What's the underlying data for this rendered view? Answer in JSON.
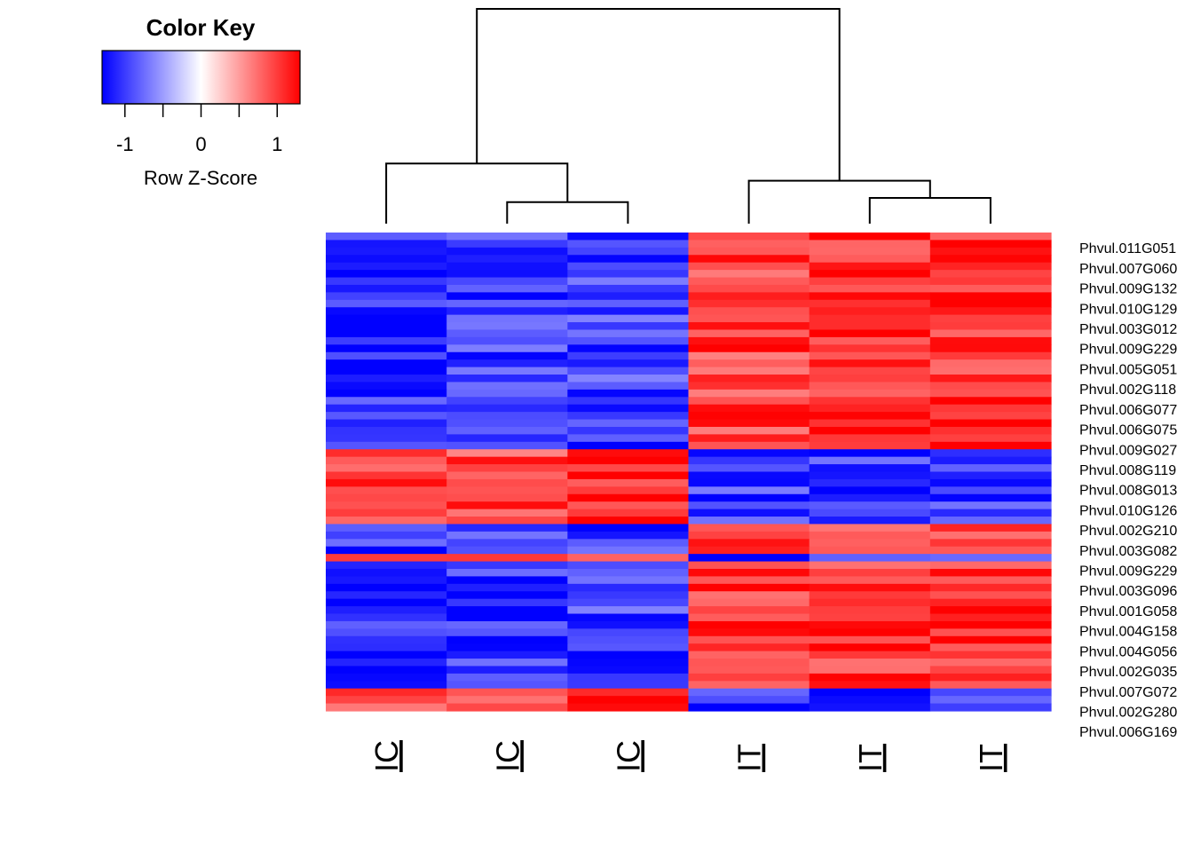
{
  "chart_data": {
    "type": "heatmap",
    "color_key": {
      "title": "Color Key",
      "xlabel": "Row Z-Score",
      "range": [
        -1.3,
        1.3
      ],
      "ticks": [
        "-1",
        "0",
        "1"
      ],
      "tick_values": [
        -1,
        0,
        1
      ],
      "minor_tick_values": [
        -1,
        -0.5,
        0,
        0.5,
        1
      ],
      "low_color": "#0000ff",
      "mid_color": "#ffffff",
      "high_color": "#ff0000"
    },
    "columns": [
      "IC",
      "IC",
      "IC",
      "IT",
      "IT",
      "IT"
    ],
    "row_labels": [
      "Phvul.011G051",
      "Phvul.007G060",
      "Phvul.009G132",
      "Phvul.010G129",
      "Phvul.003G012",
      "Phvul.009G229",
      "Phvul.005G051",
      "Phvul.002G118",
      "Phvul.006G077",
      "Phvul.006G075",
      "Phvul.009G027",
      "Phvul.008G119",
      "Phvul.008G013",
      "Phvul.010G126",
      "Phvul.002G210",
      "Phvul.003G082",
      "Phvul.009G229",
      "Phvul.003G096",
      "Phvul.001G058",
      "Phvul.004G158",
      "Phvul.004G056",
      "Phvul.002G035",
      "Phvul.007G072",
      "Phvul.002G280",
      "Phvul.006G169"
    ],
    "row_clusters": [
      {
        "rows": 29,
        "values": [
          -1.1,
          -1.0,
          -0.95,
          1.0,
          1.05,
          1.05
        ]
      },
      {
        "rows": 10,
        "values": [
          1.0,
          0.9,
          1.15,
          -1.0,
          -1.05,
          -1.05
        ]
      },
      {
        "rows": 4,
        "values": [
          -1.0,
          -1.0,
          -1.0,
          1.1,
          1.0,
          1.0
        ]
      },
      {
        "rows": 1,
        "values": [
          1.0,
          1.0,
          1.1,
          -1.2,
          -1.0,
          -0.9
        ]
      },
      {
        "rows": 17,
        "values": [
          -1.1,
          -1.0,
          -0.95,
          1.0,
          1.05,
          1.05
        ]
      },
      {
        "rows": 2,
        "values": [
          1.05,
          0.95,
          1.15,
          -1.0,
          -1.0,
          -0.9
        ]
      },
      {
        "rows": 1,
        "values": [
          1.0,
          1.0,
          1.1,
          -1.2,
          -1.1,
          -0.8
        ]
      }
    ],
    "column_dendrogram": [
      {
        "left": 2,
        "right": 3,
        "height": 0.1
      },
      {
        "left": 1,
        "right": "2-3",
        "height": 0.28
      },
      {
        "left": 5,
        "right": 6,
        "height": 0.12
      },
      {
        "left": 4,
        "right": "5-6",
        "height": 0.2
      },
      {
        "left": "1-3",
        "right": "4-6",
        "height": 1.0
      }
    ]
  }
}
